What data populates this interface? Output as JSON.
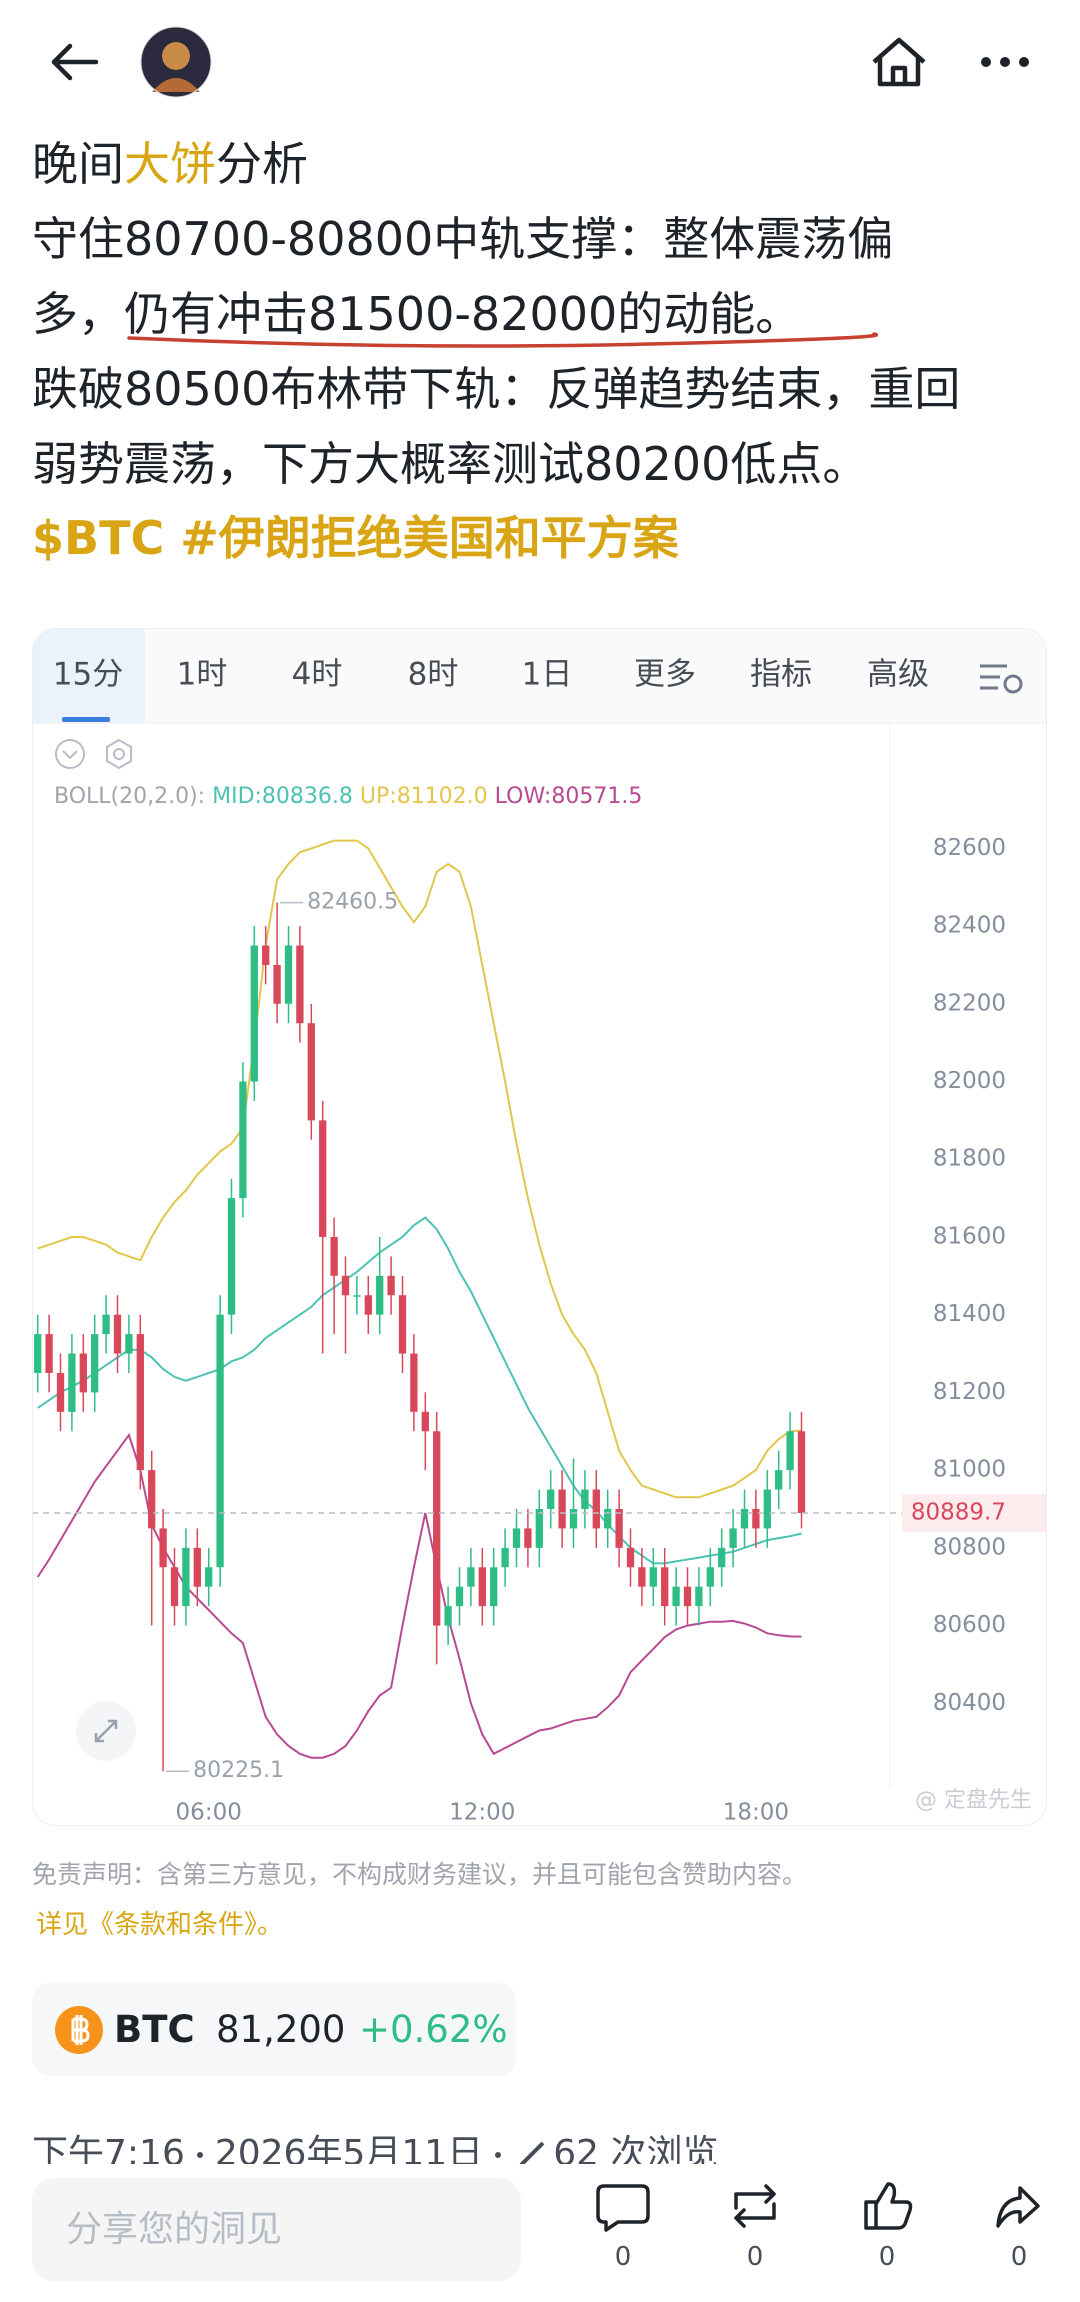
{
  "post": {
    "title": [
      "晚间",
      "大饼",
      "分析"
    ],
    "line2": "守住80700-80800中轨支撑：整体震荡偏",
    "line3": [
      "多，",
      "仍有冲击81500-82000的动能。"
    ],
    "line4": "跌破80500布林带下轨：反弹趋势结束，重回",
    "line5": "弱势震荡，下方大概率测试80200低点。",
    "tags": "$BTC #伊朗拒绝美国和平方案"
  },
  "chart_tabs": [
    "15分",
    "1时",
    "4时",
    "8时",
    "1日",
    "更多",
    "指标",
    "高级"
  ],
  "chart_data": {
    "type": "candlestick",
    "indicator": "BOLL(20,2.0):",
    "watermark": "@ 定盘先生",
    "categories": [
      null,
      null,
      null,
      null,
      null,
      null,
      null,
      null,
      null,
      null,
      null,
      null,
      null,
      null,
      null,
      "06:00",
      null,
      null,
      null,
      null,
      null,
      null,
      null,
      null,
      null,
      null,
      null,
      null,
      null,
      null,
      null,
      null,
      null,
      null,
      null,
      null,
      null,
      null,
      null,
      "12:00",
      null,
      null,
      null,
      null,
      null,
      null,
      null,
      null,
      null,
      null,
      null,
      null,
      null,
      null,
      null,
      null,
      null,
      null,
      null,
      null,
      null,
      null,
      null,
      "18:00",
      null,
      null,
      null,
      null
    ],
    "open": [
      81250,
      81350,
      81250,
      81150,
      81300,
      81200,
      81350,
      81400,
      81300,
      81350,
      81000,
      80850,
      80750,
      80650,
      80800,
      80700,
      80750,
      81400,
      81700,
      82000,
      82350,
      82300,
      82200,
      82350,
      82150,
      81900,
      81600,
      81500,
      81450,
      81450,
      81400,
      81500,
      81450,
      81300,
      81150,
      81100,
      80600,
      80650,
      80700,
      80750,
      80650,
      80750,
      80800,
      80850,
      80800,
      80900,
      80950,
      80850,
      80900,
      80950,
      80850,
      80900,
      80800,
      80750,
      80700,
      80750,
      80650,
      80700,
      80650,
      80700,
      80750,
      80800,
      80850,
      80900,
      80850,
      80950,
      81000,
      81100
    ],
    "high": [
      81400,
      81400,
      81300,
      81350,
      81350,
      81400,
      81450,
      81450,
      81400,
      81400,
      81050,
      80900,
      80800,
      80850,
      80850,
      80800,
      81450,
      81750,
      82050,
      82400,
      82400,
      82460.5,
      82400,
      82400,
      82200,
      81950,
      81650,
      81550,
      81500,
      81500,
      81600,
      81550,
      81500,
      81350,
      81200,
      81150,
      80700,
      80750,
      80800,
      80800,
      80800,
      80850,
      80900,
      80900,
      80950,
      81000,
      81000,
      81030,
      81000,
      81000,
      80950,
      80950,
      80850,
      80800,
      80800,
      80800,
      80750,
      80750,
      80750,
      80800,
      80850,
      80900,
      80950,
      80950,
      81000,
      81050,
      81150,
      81150
    ],
    "low": [
      81200,
      81200,
      81100,
      81100,
      81150,
      81150,
      81300,
      81250,
      81250,
      80950,
      80600,
      80225.1,
      80600,
      80600,
      80650,
      80650,
      80700,
      81350,
      81650,
      81950,
      82250,
      82150,
      82150,
      82100,
      81850,
      81300,
      81350,
      81300,
      81400,
      81350,
      81350,
      81400,
      81250,
      81100,
      81000,
      80500,
      80550,
      80600,
      80650,
      80600,
      80600,
      80700,
      80750,
      80750,
      80750,
      80850,
      80800,
      80800,
      80850,
      80800,
      80800,
      80750,
      80700,
      80650,
      80650,
      80600,
      80600,
      80600,
      80600,
      80650,
      80700,
      80750,
      80800,
      80800,
      80800,
      80900,
      80950,
      80850
    ],
    "close": [
      81350,
      81250,
      81150,
      81300,
      81200,
      81350,
      81400,
      81300,
      81350,
      81000,
      80850,
      80750,
      80650,
      80800,
      80700,
      80750,
      81400,
      81700,
      82000,
      82350,
      82300,
      82200,
      82350,
      82150,
      81900,
      81600,
      81500,
      81450,
      81450,
      81400,
      81500,
      81450,
      81300,
      81150,
      81100,
      80600,
      80650,
      80700,
      80750,
      80650,
      80750,
      80800,
      80850,
      80800,
      80900,
      80950,
      80850,
      80900,
      80950,
      80850,
      80900,
      80800,
      80750,
      80700,
      80750,
      80650,
      80700,
      80650,
      80700,
      80750,
      80800,
      80850,
      80900,
      80850,
      80950,
      81000,
      81100,
      80889.7
    ],
    "up_color": "#2ebd85",
    "down_color": "#d9475a",
    "series": [
      {
        "name": "MID",
        "legend": "MID:80836.8",
        "color": "#4cc3b2",
        "values": [
          81160,
          81180,
          81200,
          81215,
          81230,
          81250,
          81270,
          81290,
          81310,
          81310,
          81290,
          81260,
          81240,
          81230,
          81240,
          81250,
          81260,
          81280,
          81290,
          81310,
          81340,
          81360,
          81380,
          81400,
          81420,
          81450,
          81470,
          81490,
          81510,
          81535,
          81560,
          81580,
          81600,
          81630,
          81650,
          81620,
          81570,
          81510,
          81460,
          81400,
          81340,
          81280,
          81220,
          81160,
          81110,
          81060,
          81010,
          80960,
          80920,
          80895,
          80860,
          80830,
          80800,
          80780,
          80760,
          80760,
          80765,
          80770,
          80775,
          80780,
          80785,
          80790,
          80800,
          80810,
          80820,
          80825,
          80830,
          80837
        ]
      },
      {
        "name": "UP",
        "legend": "UP:81102.0",
        "color": "#e2c64c",
        "values": [
          81570,
          81580,
          81590,
          81600,
          81600,
          81590,
          81580,
          81560,
          81550,
          81540,
          81600,
          81650,
          81690,
          81720,
          81760,
          81790,
          81820,
          81840,
          81880,
          82100,
          82350,
          82520,
          82560,
          82590,
          82600,
          82610,
          82620,
          82620,
          82620,
          82600,
          82550,
          82500,
          82450,
          82410,
          82450,
          82540,
          82560,
          82540,
          82450,
          82300,
          82150,
          82000,
          81840,
          81700,
          81580,
          81480,
          81400,
          81350,
          81310,
          81250,
          81150,
          81050,
          81000,
          80960,
          80950,
          80940,
          80930,
          80930,
          80930,
          80940,
          80950,
          80960,
          80980,
          81000,
          81050,
          81080,
          81100,
          81102
        ]
      },
      {
        "name": "LOW",
        "legend": "LOW:80571.5",
        "color": "#b84a92",
        "values": [
          80725,
          80770,
          80820,
          80870,
          80920,
          80970,
          81010,
          81050,
          81090,
          81000,
          80860,
          80800,
          80750,
          80700,
          80670,
          80640,
          80610,
          80580,
          80555,
          80460,
          80365,
          80320,
          80290,
          80270,
          80260,
          80260,
          80270,
          80290,
          80330,
          80380,
          80420,
          80440,
          80600,
          80750,
          80890,
          80750,
          80620,
          80515,
          80400,
          80320,
          80270,
          80285,
          80300,
          80315,
          80330,
          80335,
          80345,
          80355,
          80360,
          80365,
          80390,
          80420,
          80480,
          80510,
          80540,
          80570,
          80590,
          80600,
          80605,
          80610,
          80610,
          80612,
          80605,
          80595,
          80580,
          80575,
          80572,
          80571.5
        ]
      }
    ],
    "ylim": [
      80200,
      82920
    ],
    "yticks": [
      80400,
      80600,
      80800,
      81000,
      81200,
      81400,
      81600,
      81800,
      82000,
      82200,
      82400,
      82600
    ],
    "grid": false
  },
  "disclaimer": "免责声明：含第三方意见，不构成财务建议，并且可能包含赞助内容。",
  "terms": "详见《条款和条件》。",
  "ticker": {
    "symbol": "BTC",
    "price": "81,200",
    "change": "+0.62%"
  },
  "meta": [
    "下午7:16",
    "2026年5月11日",
    "62 次浏览"
  ],
  "composer": {
    "placeholder": "分享您的洞见",
    "counts": [
      0,
      0,
      0,
      0
    ]
  }
}
